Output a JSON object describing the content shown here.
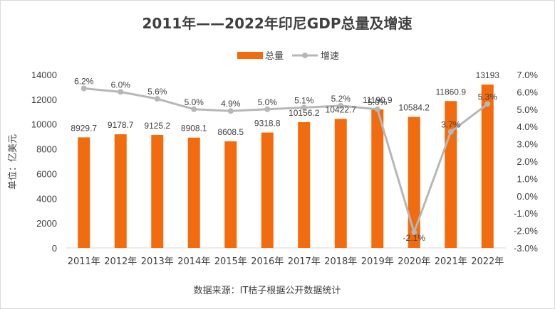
{
  "chart_data": {
    "type": "bar",
    "title": "2011年——2022年印尼GDP总量及增速",
    "categories": [
      "2011年",
      "2012年",
      "2013年",
      "2014年",
      "2015年",
      "2016年",
      "2017年",
      "2018年",
      "2019年",
      "2020年",
      "2021年",
      "2022年"
    ],
    "series": [
      {
        "name": "总量",
        "type": "bar",
        "axis": "left",
        "color": "#f26b0f",
        "values": [
          8929.7,
          9178.7,
          9125.2,
          8908.1,
          8608.5,
          9318.8,
          10156.2,
          10422.7,
          11190.9,
          10584.2,
          11860.9,
          13193
        ],
        "labels": [
          "8929.7",
          "9178.7",
          "9125.2",
          "8908.1",
          "8608.5",
          "9318.8",
          "10156.2",
          "10422.7",
          "11190.9",
          "10584.2",
          "11860.9",
          "13193"
        ]
      },
      {
        "name": "增速",
        "type": "line",
        "axis": "right",
        "color": "#b7b7b7",
        "values": [
          6.2,
          6.0,
          5.6,
          5.0,
          4.9,
          5.0,
          5.1,
          5.2,
          5.0,
          -2.1,
          3.7,
          5.3
        ],
        "labels": [
          "6.2%",
          "6.0%",
          "5.6%",
          "5.0%",
          "4.9%",
          "5.0%",
          "5.1%",
          "5.2%",
          "5.0%",
          "-2.1%",
          "3.7%",
          "5.3%"
        ]
      }
    ],
    "ylabel": "单位：亿美元",
    "ylim": [
      0,
      14000
    ],
    "yticks": [
      "0",
      "2000",
      "4000",
      "6000",
      "8000",
      "10000",
      "12000",
      "14000"
    ],
    "y2lim": [
      -3.0,
      7.0
    ],
    "y2ticks": [
      "-3.0%",
      "-2.0%",
      "-1.0%",
      "0.0%",
      "1.0%",
      "2.0%",
      "3.0%",
      "4.0%",
      "5.0%",
      "6.0%",
      "7.0%"
    ],
    "legend_position": "top",
    "grid": false,
    "source": "数据来源：IT桔子根据公开数据统计"
  }
}
